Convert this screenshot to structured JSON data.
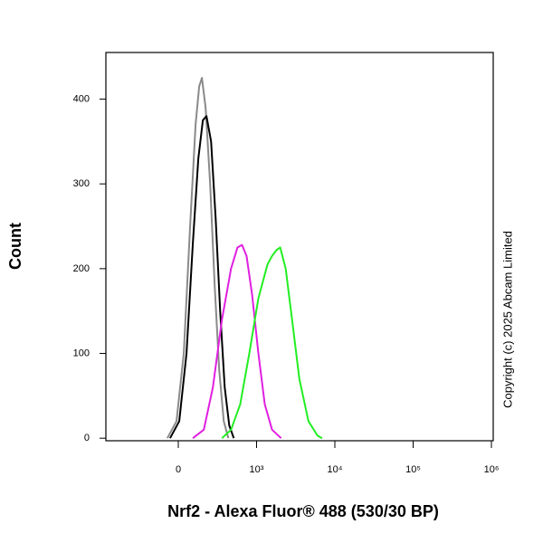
{
  "chart_data": {
    "type": "line",
    "xlabel": "Nrf2 - Alexa Fluor® 488 (530/30 BP)",
    "ylabel": "Count",
    "annotation": "Copyright (c) 2025 Abcam Limited",
    "xscale": "biexponential",
    "xlim": [
      -925,
      1055000
    ],
    "ylim": [
      -3,
      455
    ],
    "xticks": [
      0,
      {
        "value": 1000,
        "label": "10³"
      },
      {
        "value": 10000,
        "label": "10⁴"
      },
      {
        "value": 100000,
        "label": "10⁵"
      },
      {
        "value": 1000000,
        "label": "10⁶"
      }
    ],
    "yticks": [
      0,
      100,
      200,
      300,
      400
    ],
    "series": [
      {
        "color": "#8a8a8a",
        "x": [
          -140,
          -23,
          70,
          151,
          221,
          267,
          302,
          349,
          407,
          465,
          523,
          581,
          640
        ],
        "values": [
          0,
          20,
          100,
          250,
          370,
          415,
          425,
          390,
          300,
          180,
          80,
          20,
          0
        ]
      },
      {
        "color": "#000000",
        "x": [
          -105,
          12,
          105,
          186,
          256,
          314,
          360,
          419,
          477,
          535,
          593,
          651,
          709
        ],
        "values": [
          0,
          20,
          100,
          230,
          330,
          375,
          380,
          350,
          260,
          150,
          60,
          15,
          0
        ]
      },
      {
        "color": "#e020e0",
        "x": [
          186,
          326,
          442,
          558,
          674,
          756,
          814,
          872,
          942,
          1055,
          1273,
          1577,
          2060
        ],
        "values": [
          0,
          10,
          60,
          140,
          200,
          225,
          228,
          215,
          170,
          100,
          40,
          10,
          0
        ]
      },
      {
        "color": "#22ee22",
        "x": [
          558,
          674,
          791,
          907,
          1055,
          1380,
          1577,
          1802,
          2005,
          2355,
          2840,
          3520,
          4600,
          6010,
          6870
        ],
        "values": [
          0,
          10,
          40,
          100,
          165,
          205,
          215,
          222,
          225,
          200,
          140,
          70,
          20,
          3,
          0
        ]
      }
    ]
  }
}
